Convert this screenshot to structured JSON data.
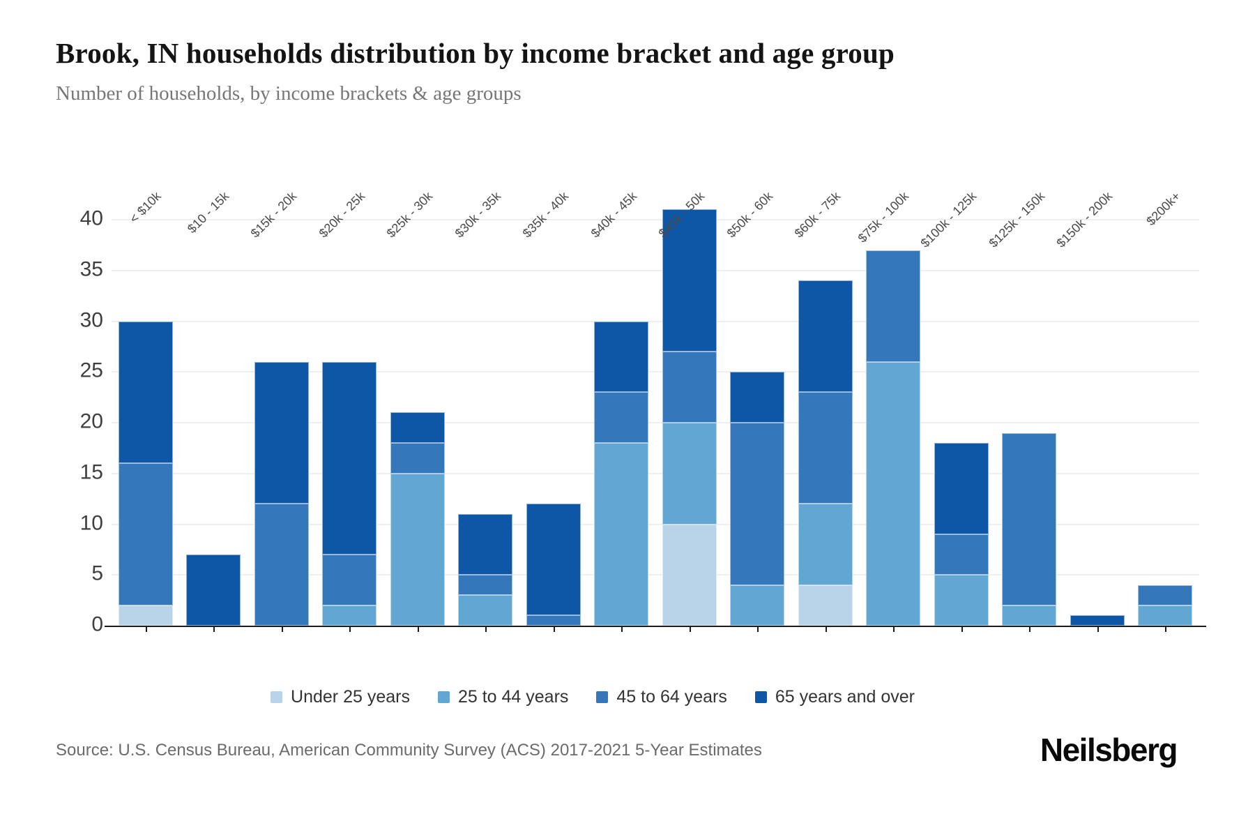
{
  "header": {
    "title": "Brook, IN households distribution by income bracket and age group",
    "subtitle": "Number of households, by income brackets & age groups"
  },
  "footer": {
    "source": "Source: U.S. Census Bureau, American Community Survey (ACS) 2017-2021 5-Year Estimates",
    "brand": "Neilsberg"
  },
  "chart_data": {
    "type": "bar",
    "stacked": true,
    "title": "Brook, IN households distribution by income bracket and age group",
    "xlabel": "",
    "ylabel": "",
    "ylim": [
      0,
      40
    ],
    "ytick_step": 5,
    "yticks": [
      0,
      5,
      10,
      15,
      20,
      25,
      30,
      35,
      40
    ],
    "grid": true,
    "legend_position": "bottom",
    "categories": [
      "< $10k",
      "$10 - 15k",
      "$15k - 20k",
      "$20k - 25k",
      "$25k - 30k",
      "$30k - 35k",
      "$35k - 40k",
      "$40k - 45k",
      "$45k - 50k",
      "$50k - 60k",
      "$60k - 75k",
      "$75k - 100k",
      "$100k - 125k",
      "$125k - 150k",
      "$150k - 200k",
      "$200k+"
    ],
    "series": [
      {
        "name": "Under 25 years",
        "color": "#b9d3e8",
        "values": [
          2,
          0,
          0,
          0,
          0,
          0,
          0,
          0,
          10,
          0,
          4,
          0,
          0,
          0,
          0,
          0
        ]
      },
      {
        "name": "25 to 44 years",
        "color": "#62a7d3",
        "values": [
          0,
          0,
          0,
          2,
          15,
          3,
          0,
          18,
          10,
          4,
          8,
          26,
          5,
          2,
          0,
          2
        ]
      },
      {
        "name": "45 to 64 years",
        "color": "#3478bb",
        "values": [
          14,
          0,
          12,
          5,
          3,
          2,
          1,
          5,
          7,
          16,
          11,
          11,
          4,
          17,
          0,
          2
        ]
      },
      {
        "name": "65 years and over",
        "color": "#0d57a6",
        "values": [
          14,
          7,
          14,
          19,
          3,
          6,
          11,
          7,
          14,
          5,
          11,
          0,
          9,
          0,
          1,
          0
        ]
      }
    ],
    "totals": [
      30,
      7,
      26,
      26,
      21,
      11,
      12,
      30,
      41,
      25,
      34,
      37,
      18,
      19,
      1,
      4
    ]
  }
}
